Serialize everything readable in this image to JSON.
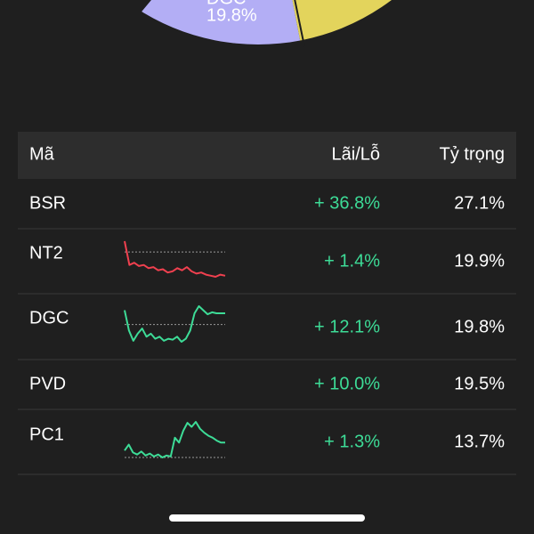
{
  "pie": {
    "label": "DGC",
    "value_label": "19.8%"
  },
  "table": {
    "header": [
      "Mã",
      "Lãi/Lỗ",
      "Tỷ trọng"
    ],
    "rows": [
      {
        "code": "BSR",
        "change": "+ 36.8%",
        "weight": "27.1%"
      },
      {
        "code": "NT2",
        "change": "+ 1.4%",
        "weight": "19.9%",
        "sparkline": {
          "color": "#f0404f",
          "baseline": 37,
          "values": [
            47,
            25,
            27,
            24,
            25,
            22,
            23,
            20,
            21,
            18,
            19,
            22,
            20,
            23,
            19,
            17,
            18,
            16,
            15,
            14,
            16,
            15
          ]
        }
      },
      {
        "code": "DGC",
        "change": "+ 12.1%",
        "weight": "19.8%",
        "sparkline": {
          "color": "#3ddc97",
          "baseline": 34,
          "values": [
            48,
            28,
            18,
            25,
            30,
            22,
            25,
            20,
            22,
            18,
            20,
            19,
            22,
            17,
            20,
            28,
            45,
            52,
            48,
            44,
            46,
            45,
            45,
            45
          ]
        }
      },
      {
        "code": "PVD",
        "change": "+ 10.0%",
        "weight": "19.5%"
      },
      {
        "code": "PC1",
        "change": "+ 1.3%",
        "weight": "13.7%",
        "sparkline": {
          "color": "#3ddc97",
          "baseline": 5,
          "values": [
            12,
            18,
            10,
            8,
            11,
            7,
            9,
            6,
            8,
            5,
            7,
            6,
            25,
            20,
            32,
            40,
            36,
            41,
            34,
            30,
            27,
            25,
            22,
            20,
            20
          ]
        }
      }
    ]
  }
}
